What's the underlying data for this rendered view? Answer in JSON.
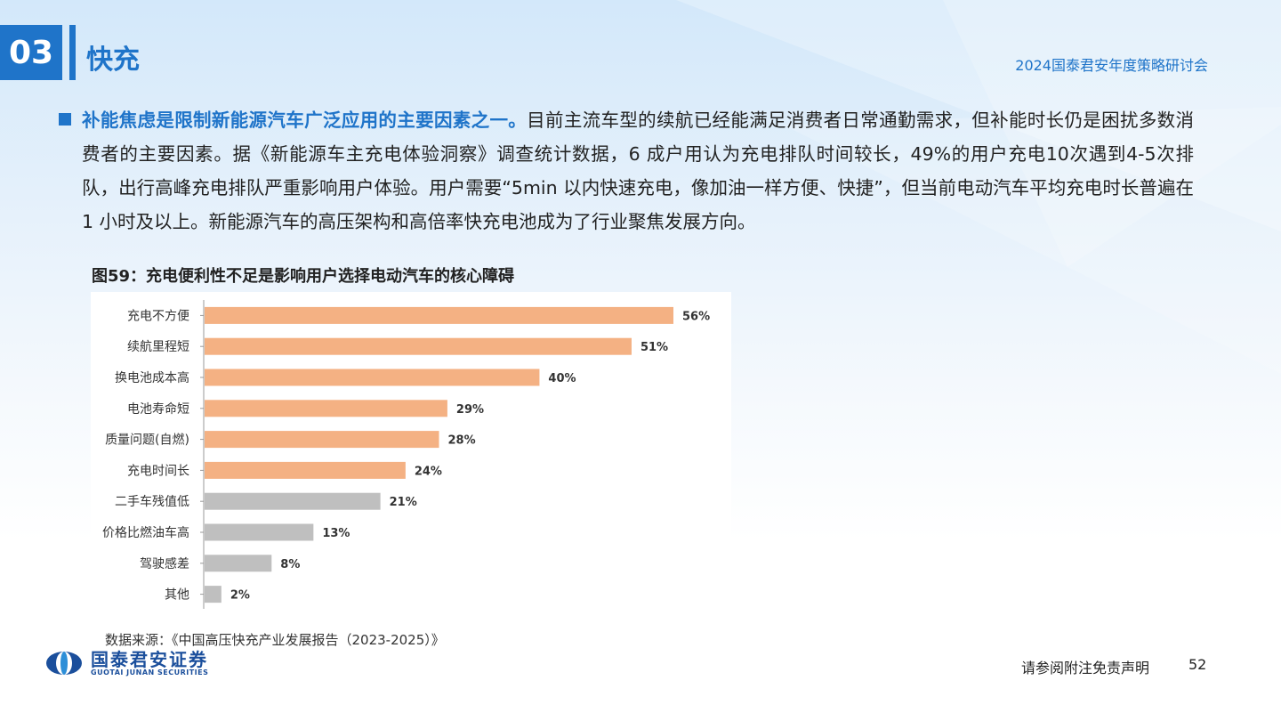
{
  "header": {
    "section_number": "03",
    "title": "快充",
    "conference": "2024国泰君安年度策略研讨会"
  },
  "body": {
    "lead": "补能焦虑是限制新能源汽车广泛应用的主要因素之一。",
    "text": "目前主流车型的续航已经能满足消费者日常通勤需求，但补能时长仍是困扰多数消费者的主要因素。据《新能源车主充电体验洞察》调查统计数据，6 成户用认为充电排队时间较长，49%的用户充电10次遇到4-5次排队，出行高峰充电排队严重影响用户体验。用户需要“5min 以内快速充电，像加油一样方便、快捷”，但当前电动汽车平均充电时长普遍在 1 小时及以上。新能源汽车的高压架构和高倍率快充电池成为了行业聚焦发展方向。"
  },
  "figure": {
    "caption": "图59：充电便利性不足是影响用户选择电动汽车的核心障碍",
    "source": "数据来源：《中国高压快充产业发展报告（2023-2025）》"
  },
  "chart_data": {
    "type": "bar",
    "orientation": "horizontal",
    "title": "",
    "xlabel": "",
    "ylabel": "",
    "categories": [
      "充电不方便",
      "续航里程短",
      "换电池成本高",
      "电池寿命短",
      "质量问题(自燃)",
      "充电时间长",
      "二手车残值低",
      "价格比燃油车高",
      "驾驶感差",
      "其他"
    ],
    "values": [
      56,
      51,
      40,
      29,
      28,
      24,
      21,
      13,
      8,
      2
    ],
    "value_labels": [
      "56%",
      "51%",
      "40%",
      "29%",
      "28%",
      "24%",
      "21%",
      "13%",
      "8%",
      "2%"
    ],
    "bar_colors": [
      "#f4b183",
      "#f4b183",
      "#f4b183",
      "#f4b183",
      "#f4b183",
      "#f4b183",
      "#bfbfbf",
      "#bfbfbf",
      "#bfbfbf",
      "#bfbfbf"
    ],
    "xlim": [
      0,
      56
    ],
    "grid": false,
    "legend": "none"
  },
  "footer": {
    "logo_cn": "国泰君安证券",
    "logo_en": "GUOTAI JUNAN SECURITIES",
    "disclaimer": "请参阅附注免责声明",
    "page": "52"
  },
  "colors": {
    "brand_blue": "#1f74c9",
    "logo_blue": "#1b4f9c"
  }
}
